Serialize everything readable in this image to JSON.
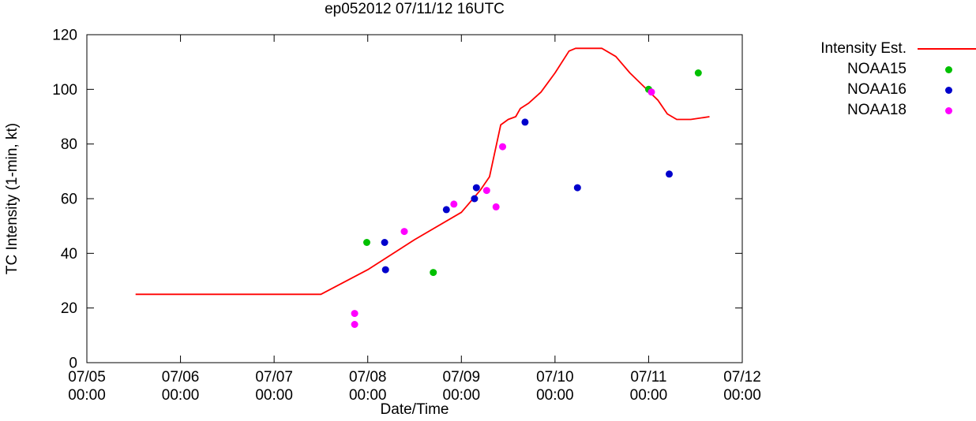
{
  "chart_data": {
    "type": "line+scatter",
    "title": "ep052012 07/11/12 16UTC",
    "xlabel": "Date/Time",
    "ylabel": "TC Intensity (1-min, kt)",
    "ylim": [
      0,
      120
    ],
    "yticks": [
      0,
      20,
      40,
      60,
      80,
      100,
      120
    ],
    "x_unit": "days since 07/05 00:00",
    "xlim_days": [
      0,
      7
    ],
    "xticks": [
      {
        "pos": 0,
        "date": "07/05",
        "time": "00:00"
      },
      {
        "pos": 1,
        "date": "07/06",
        "time": "00:00"
      },
      {
        "pos": 2,
        "date": "07/07",
        "time": "00:00"
      },
      {
        "pos": 3,
        "date": "07/08",
        "time": "00:00"
      },
      {
        "pos": 4,
        "date": "07/09",
        "time": "00:00"
      },
      {
        "pos": 5,
        "date": "07/10",
        "time": "00:00"
      },
      {
        "pos": 6,
        "date": "07/11",
        "time": "00:00"
      },
      {
        "pos": 7,
        "date": "07/12",
        "time": "00:00"
      }
    ],
    "grid": false,
    "legend_position": "outside-top-right",
    "series": [
      {
        "name": "Intensity Est.",
        "type": "line",
        "color": "#ff0000",
        "points": [
          [
            0.52,
            25
          ],
          [
            2.5,
            25
          ],
          [
            3.0,
            34
          ],
          [
            3.5,
            45
          ],
          [
            4.0,
            55
          ],
          [
            4.2,
            63
          ],
          [
            4.3,
            68
          ],
          [
            4.42,
            87
          ],
          [
            4.5,
            89
          ],
          [
            4.58,
            90
          ],
          [
            4.63,
            93
          ],
          [
            4.72,
            95
          ],
          [
            4.85,
            99
          ],
          [
            5.0,
            106
          ],
          [
            5.15,
            114
          ],
          [
            5.22,
            115
          ],
          [
            5.5,
            115
          ],
          [
            5.65,
            112
          ],
          [
            5.8,
            106
          ],
          [
            5.95,
            101
          ],
          [
            6.1,
            96
          ],
          [
            6.2,
            91
          ],
          [
            6.3,
            89
          ],
          [
            6.45,
            89
          ],
          [
            6.65,
            90
          ]
        ]
      },
      {
        "name": "NOAA15",
        "type": "scatter",
        "color": "#00c000",
        "points": [
          [
            2.99,
            44
          ],
          [
            3.7,
            33
          ],
          [
            6.0,
            100
          ],
          [
            6.53,
            106
          ]
        ]
      },
      {
        "name": "NOAA16",
        "type": "scatter",
        "color": "#0000cc",
        "points": [
          [
            3.18,
            44
          ],
          [
            3.19,
            34
          ],
          [
            3.84,
            56
          ],
          [
            4.14,
            60
          ],
          [
            4.16,
            64
          ],
          [
            4.68,
            88
          ],
          [
            5.24,
            64
          ],
          [
            6.22,
            69
          ]
        ]
      },
      {
        "name": "NOAA18",
        "type": "scatter",
        "color": "#ff00ff",
        "points": [
          [
            2.86,
            18
          ],
          [
            2.86,
            14
          ],
          [
            3.39,
            48
          ],
          [
            3.92,
            58
          ],
          [
            4.27,
            63
          ],
          [
            4.37,
            57
          ],
          [
            4.44,
            79
          ],
          [
            6.03,
            99
          ]
        ]
      }
    ]
  },
  "legend": [
    {
      "label": "Intensity Est.",
      "marker": "line",
      "color": "#ff0000"
    },
    {
      "label": "NOAA15",
      "marker": "dot",
      "color": "#00c000"
    },
    {
      "label": "NOAA16",
      "marker": "dot",
      "color": "#0000cc"
    },
    {
      "label": "NOAA18",
      "marker": "dot",
      "color": "#ff00ff"
    }
  ],
  "axis_color": "#000000"
}
